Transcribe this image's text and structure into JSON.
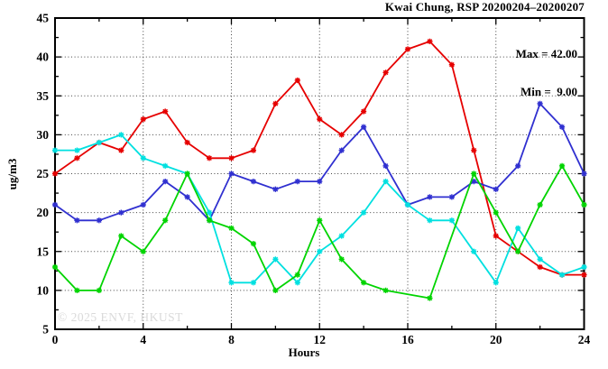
{
  "title": "Kwai Chung, RSP 20200204–20200207",
  "legend": {
    "max_label": "Max = 42.00",
    "min_label": "Min =  9.00"
  },
  "watermark": "© 2025 ENVF, HKUST",
  "axes": {
    "x_label": "Hours",
    "y_label": "ug/m3"
  },
  "colors": {
    "red": "#e60000",
    "blue": "#3030d0",
    "cyan": "#00e0e0",
    "green": "#00d400",
    "grid": "#444444",
    "watermark": "#dadada"
  },
  "chart_data": {
    "type": "line",
    "title": "Kwai Chung, RSP 20200204–20200207",
    "xlabel": "Hours",
    "ylabel": "ug/m3",
    "xlim": [
      0,
      24
    ],
    "ylim": [
      5,
      45
    ],
    "x_major_ticks": [
      0,
      4,
      8,
      12,
      16,
      20,
      24
    ],
    "x_minor_step": 2,
    "y_major_ticks": [
      5,
      10,
      15,
      20,
      25,
      30,
      35,
      40,
      45
    ],
    "y_minor_step": 2.5,
    "grid": true,
    "legend_position": "top-right-inside",
    "marker": "asterisk",
    "x": [
      0,
      1,
      2,
      3,
      4,
      5,
      6,
      7,
      8,
      9,
      10,
      11,
      12,
      13,
      14,
      15,
      16,
      17,
      18,
      19,
      20,
      21,
      22,
      23,
      24
    ],
    "series": [
      {
        "name": "series-red",
        "color": "#e60000",
        "values": [
          25,
          27,
          29,
          28,
          32,
          33,
          29,
          27,
          27,
          28,
          34,
          37,
          32,
          30,
          33,
          38,
          41,
          42,
          39,
          28,
          17,
          15,
          13,
          12,
          12
        ]
      },
      {
        "name": "series-blue",
        "color": "#3030d0",
        "values": [
          21,
          19,
          19,
          20,
          21,
          24,
          22,
          19,
          25,
          24,
          23,
          24,
          24,
          28,
          31,
          26,
          21,
          22,
          22,
          24,
          23,
          26,
          34,
          31,
          25
        ]
      },
      {
        "name": "series-cyan",
        "color": "#00e0e0",
        "values": [
          28,
          28,
          29,
          30,
          27,
          26,
          25,
          20,
          11,
          11,
          14,
          11,
          15,
          17,
          20,
          24,
          21,
          19,
          19,
          15,
          11,
          18,
          14,
          12,
          13
        ]
      },
      {
        "name": "series-green",
        "color": "#00d400",
        "values": [
          13,
          10,
          10,
          17,
          15,
          19,
          25,
          19,
          18,
          16,
          10,
          12,
          19,
          14,
          11,
          10,
          null,
          9,
          null,
          25,
          20,
          15,
          21,
          26,
          21
        ]
      }
    ],
    "stats": {
      "max": 42.0,
      "min": 9.0
    }
  }
}
